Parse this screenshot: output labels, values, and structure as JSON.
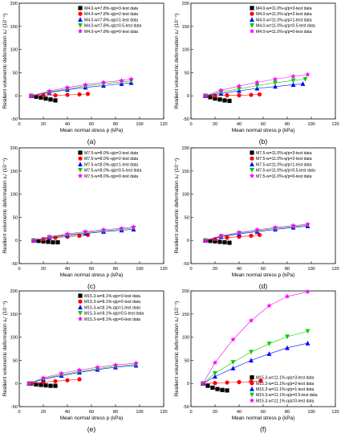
{
  "chart_data": [
    {
      "type": "scatter",
      "panel_label": "(a)",
      "xlabel": "Mean normal stress p (kPa)",
      "ylabel": "Resilient volumetric deformation εᵥʳ (10⁻⁴)",
      "xlim": [
        0,
        120
      ],
      "ylim": [
        -50,
        200
      ],
      "xticks": [
        "0",
        "20",
        "40",
        "60",
        "80",
        "100",
        "120"
      ],
      "yticks": [
        "-50",
        "0",
        "50",
        "100",
        "150",
        "200"
      ],
      "legend_position": "top-right",
      "series": [
        {
          "name": "M4.0-w=7.8%-q/p=3-test data",
          "color": "#000000",
          "marker": "square",
          "x": [
            10,
            14,
            18,
            22,
            26,
            30
          ],
          "y": [
            0,
            -2,
            -4,
            -6,
            -8,
            -10
          ]
        },
        {
          "name": "M4.0-w=7.8%-q/p=2-test data",
          "color": "#ff0000",
          "marker": "circle",
          "x": [
            10,
            20,
            30,
            40,
            50,
            57
          ],
          "y": [
            0,
            1,
            1,
            2,
            3,
            4
          ]
        },
        {
          "name": "M4.0-w=7.8%-q/p=1-test data",
          "color": "#0000ff",
          "marker": "triangle-up",
          "x": [
            10,
            25,
            40,
            55,
            70,
            85,
            93
          ],
          "y": [
            0,
            7,
            13,
            18,
            22,
            26,
            28
          ]
        },
        {
          "name": "M4.0-w=7.8%-q/p=0.5-test data",
          "color": "#00cc00",
          "marker": "triangle-down",
          "x": [
            10,
            25,
            40,
            55,
            70,
            85,
            93
          ],
          "y": [
            0,
            8,
            15,
            21,
            26,
            30,
            32
          ]
        },
        {
          "name": "M4.0-w=7.8%-q/p=0-test data",
          "color": "#ff00ff",
          "marker": "star",
          "x": [
            10,
            25,
            40,
            55,
            70,
            85,
            93
          ],
          "y": [
            0,
            10,
            18,
            24,
            29,
            33,
            36
          ]
        }
      ]
    },
    {
      "type": "scatter",
      "panel_label": "(b)",
      "xlabel": "Mean normal stress p (kPa)",
      "ylabel": "Resilient volumetric deformation εᵥʳ (10⁻⁴)",
      "xlim": [
        0,
        120
      ],
      "ylim": [
        -50,
        200
      ],
      "xticks": [
        "0",
        "20",
        "40",
        "60",
        "80",
        "100",
        "120"
      ],
      "yticks": [
        "-50",
        "0",
        "50",
        "100",
        "150",
        "200"
      ],
      "legend_position": "top-right",
      "series": [
        {
          "name": "M4.0-w=11.0%-q/p=3-test data",
          "color": "#000000",
          "marker": "square",
          "x": [
            12,
            16,
            20,
            24,
            28,
            32
          ],
          "y": [
            0,
            -3,
            -6,
            -8,
            -10,
            -11
          ]
        },
        {
          "name": "M4.0-w=11.0%-q/p=2-test data",
          "color": "#ff0000",
          "marker": "circle",
          "x": [
            12,
            20,
            30,
            40,
            50,
            57
          ],
          "y": [
            0,
            0,
            1,
            1,
            2,
            3
          ]
        },
        {
          "name": "M4.0-w=11.0%-q/p=1-test data",
          "color": "#0000ff",
          "marker": "triangle-up",
          "x": [
            12,
            25,
            40,
            55,
            70,
            85,
            93
          ],
          "y": [
            0,
            5,
            11,
            16,
            20,
            24,
            26
          ]
        },
        {
          "name": "M4.0-w=11.0%-q/p=0.5-test data",
          "color": "#00cc00",
          "marker": "triangle-down",
          "x": [
            12,
            25,
            40,
            55,
            70,
            85,
            95
          ],
          "y": [
            0,
            8,
            15,
            22,
            28,
            33,
            36
          ]
        },
        {
          "name": "M4.0-w=11.0%-q/p=0-test data",
          "color": "#ff00ff",
          "marker": "star",
          "x": [
            12,
            25,
            40,
            55,
            70,
            85,
            97
          ],
          "y": [
            0,
            12,
            21,
            29,
            36,
            42,
            46
          ]
        }
      ]
    },
    {
      "type": "scatter",
      "panel_label": "(c)",
      "xlabel": "Mean normal stress p (kPa)",
      "ylabel": "Resilient volumetric deformation εᵥʳ (10⁻⁴)",
      "xlim": [
        0,
        120
      ],
      "ylim": [
        -50,
        200
      ],
      "xticks": [
        "0",
        "20",
        "40",
        "60",
        "80",
        "100",
        "120"
      ],
      "yticks": [
        "-50",
        "0",
        "50",
        "100",
        "150",
        "200"
      ],
      "legend_position": "top-right",
      "series": [
        {
          "name": "M7.5-w=8.0%-q/p=3-test data",
          "color": "#000000",
          "marker": "square",
          "x": [
            12,
            16,
            20,
            24,
            28,
            32
          ],
          "y": [
            0,
            -1,
            -2,
            -3,
            -4,
            -4
          ]
        },
        {
          "name": "M7.5-w=8.0%-q/p=2-test data",
          "color": "#ff0000",
          "marker": "circle",
          "x": [
            12,
            20,
            30,
            40,
            50,
            57
          ],
          "y": [
            0,
            3,
            6,
            8,
            10,
            12
          ]
        },
        {
          "name": "M7.5-w=8.0%-q/p=1-test data",
          "color": "#0000ff",
          "marker": "triangle-up",
          "x": [
            12,
            25,
            40,
            55,
            70,
            85,
            95
          ],
          "y": [
            0,
            6,
            11,
            15,
            19,
            22,
            24
          ]
        },
        {
          "name": "M7.5-w=8.0%-q/p=0.5-test data",
          "color": "#00cc00",
          "marker": "triangle-down",
          "x": [
            12,
            25,
            40,
            55,
            70,
            85,
            95
          ],
          "y": [
            0,
            7,
            12,
            17,
            21,
            24,
            27
          ]
        },
        {
          "name": "M7.5-w=8.0%-q/p=0-test data",
          "color": "#ff00ff",
          "marker": "star",
          "x": [
            12,
            25,
            40,
            55,
            70,
            85,
            95
          ],
          "y": [
            0,
            8,
            14,
            19,
            23,
            26,
            29
          ]
        }
      ]
    },
    {
      "type": "scatter",
      "panel_label": "(d)",
      "xlabel": "Mean normal stress p (kPa)",
      "ylabel": "Resilient volumetric deformation εᵥʳ (10⁻⁴)",
      "xlim": [
        0,
        120
      ],
      "ylim": [
        -50,
        200
      ],
      "xticks": [
        "0",
        "20",
        "40",
        "60",
        "80",
        "100",
        "120"
      ],
      "yticks": [
        "-50",
        "0",
        "50",
        "100",
        "150",
        "200"
      ],
      "legend_position": "top-right",
      "series": [
        {
          "name": "M7.5-w=11.0%-q/p=3-test data",
          "color": "#000000",
          "marker": "square",
          "x": [
            12,
            16,
            20,
            24,
            28,
            32
          ],
          "y": [
            0,
            -1,
            -2,
            -3,
            -4,
            -5
          ]
        },
        {
          "name": "M7.5-w=11.0%-q/p=2-test data",
          "color": "#ff0000",
          "marker": "circle",
          "x": [
            12,
            20,
            30,
            40,
            50,
            57
          ],
          "y": [
            0,
            3,
            6,
            8,
            10,
            12
          ]
        },
        {
          "name": "M7.5-w=11.0%-q/p=1-test data",
          "color": "#0000ff",
          "marker": "triangle-up",
          "x": [
            12,
            25,
            40,
            55,
            70,
            85,
            97
          ],
          "y": [
            0,
            8,
            14,
            19,
            24,
            28,
            31
          ]
        },
        {
          "name": "M7.5-w=11.0%-q/p=0.5-test data",
          "color": "#00cc00",
          "marker": "triangle-down",
          "x": [
            12,
            25,
            40,
            55,
            70,
            85,
            97
          ],
          "y": [
            0,
            9,
            16,
            21,
            26,
            30,
            33
          ]
        },
        {
          "name": "M7.5-w=11.0%-q/p=0-test data",
          "color": "#ff00ff",
          "marker": "star",
          "x": [
            12,
            25,
            40,
            55,
            70,
            85,
            97
          ],
          "y": [
            0,
            10,
            17,
            23,
            28,
            32,
            35
          ]
        }
      ]
    },
    {
      "type": "scatter",
      "panel_label": "(e)",
      "xlabel": "Mean normal stress p (kPa)",
      "ylabel": "Resilient volumetric deformation εᵥʳ (10⁻⁴)",
      "xlim": [
        0,
        120
      ],
      "ylim": [
        -50,
        200
      ],
      "xticks": [
        "0",
        "20",
        "40",
        "60",
        "80",
        "100",
        "120"
      ],
      "yticks": [
        "-50",
        "0",
        "50",
        "100",
        "150",
        "200"
      ],
      "legend_position": "top-right",
      "series": [
        {
          "name": "M15.3-w=8.1%-q/p=3-test data",
          "color": "#000000",
          "marker": "square",
          "x": [
            10,
            14,
            18,
            22,
            26,
            30
          ],
          "y": [
            0,
            -2,
            -3,
            -4,
            -5,
            -5
          ]
        },
        {
          "name": "M15.3-w=8.1%-q/p=2-test data",
          "color": "#ff0000",
          "marker": "circle",
          "x": [
            10,
            20,
            30,
            40,
            50
          ],
          "y": [
            0,
            3,
            5,
            7,
            9
          ]
        },
        {
          "name": "M15.3-w=8.1%-q/p=1-test data",
          "color": "#0000ff",
          "marker": "triangle-up",
          "x": [
            8,
            20,
            35,
            50,
            65,
            80,
            97
          ],
          "y": [
            0,
            9,
            17,
            24,
            30,
            35,
            39
          ]
        },
        {
          "name": "M15.3-w=8.1%-q/p=0.5-test data",
          "color": "#00cc00",
          "marker": "triangle-down",
          "x": [
            8,
            20,
            35,
            50,
            65,
            80,
            97
          ],
          "y": [
            0,
            10,
            19,
            26,
            32,
            37,
            41
          ]
        },
        {
          "name": "M15.3-w=8.1%-q/p=0-test data",
          "color": "#ff00ff",
          "marker": "star",
          "x": [
            8,
            20,
            35,
            50,
            65,
            80,
            97
          ],
          "y": [
            0,
            12,
            22,
            29,
            35,
            40,
            44
          ]
        }
      ]
    },
    {
      "type": "scatter",
      "panel_label": "(f)",
      "xlabel": "Mean normal stress p (kPa)",
      "ylabel": "Resilient volumetric deformation εᵥʳ (10⁻⁴)",
      "xlim": [
        0,
        120
      ],
      "ylim": [
        -50,
        200
      ],
      "xticks": [
        "0",
        "20",
        "40",
        "60",
        "80",
        "100",
        "120"
      ],
      "yticks": [
        "-50",
        "0",
        "50",
        "100",
        "150",
        "200"
      ],
      "legend_position": "bottom-right",
      "series": [
        {
          "name": "M15.3-w=11.1%-q/p=3-test data",
          "color": "#000000",
          "marker": "square",
          "x": [
            10,
            14,
            18,
            22,
            26,
            30
          ],
          "y": [
            0,
            -5,
            -9,
            -12,
            -14,
            -15
          ]
        },
        {
          "name": "M15.3-w=11.1%-q/p=2-test data",
          "color": "#ff0000",
          "marker": "circle",
          "x": [
            10,
            20,
            30,
            40,
            50,
            58
          ],
          "y": [
            0,
            1,
            2,
            3,
            4,
            6
          ]
        },
        {
          "name": "M15.3-w=11.1%-q/p=1-test data",
          "color": "#0000ff",
          "marker": "triangle-up",
          "x": [
            10,
            20,
            35,
            50,
            65,
            80,
            97
          ],
          "y": [
            0,
            15,
            33,
            50,
            64,
            77,
            87
          ]
        },
        {
          "name": "M15.3-w=11.1%-q/p=0.5-test data",
          "color": "#00cc00",
          "marker": "triangle-down",
          "x": [
            10,
            20,
            35,
            50,
            65,
            80,
            97
          ],
          "y": [
            0,
            22,
            46,
            68,
            86,
            101,
            113
          ]
        },
        {
          "name": "M15.3-w=11.1%-q/p=0-test data",
          "color": "#ff00ff",
          "marker": "star",
          "x": [
            10,
            20,
            35,
            50,
            65,
            80,
            97
          ],
          "y": [
            0,
            45,
            95,
            136,
            168,
            188,
            198
          ]
        }
      ]
    }
  ]
}
